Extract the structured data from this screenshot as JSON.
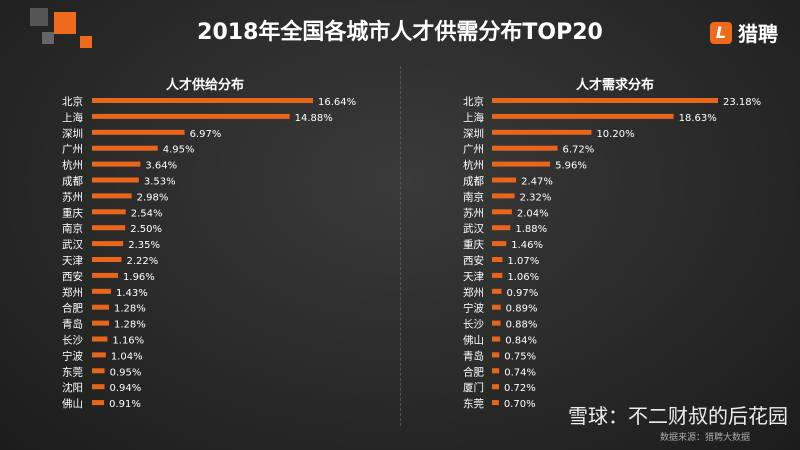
{
  "title": "2018年全国各城市人才供需分布TOP20",
  "brand": {
    "logo_letter": "L",
    "name": "猎聘"
  },
  "source": "数据来源：猎聘大数据",
  "watermark": "雪球：不二财叔的后花园",
  "colors": {
    "bar": "#e8651c",
    "background": "#2a2a2a"
  },
  "chart_data": [
    {
      "type": "bar",
      "orientation": "horizontal",
      "title": "人才供给分布",
      "categories": [
        "北京",
        "上海",
        "深圳",
        "广州",
        "杭州",
        "成都",
        "苏州",
        "重庆",
        "南京",
        "武汉",
        "天津",
        "西安",
        "郑州",
        "合肥",
        "青岛",
        "长沙",
        "宁波",
        "东莞",
        "沈阳",
        "佛山"
      ],
      "values": [
        16.64,
        14.88,
        6.97,
        4.95,
        3.64,
        3.53,
        2.98,
        2.54,
        2.5,
        2.35,
        2.22,
        1.96,
        1.43,
        1.28,
        1.28,
        1.16,
        1.04,
        0.95,
        0.94,
        0.91
      ],
      "labels": [
        "16.64%",
        "14.88%",
        "6.97%",
        "4.95%",
        "3.64%",
        "3.53%",
        "2.98%",
        "2.54%",
        "2.50%",
        "2.35%",
        "2.22%",
        "1.96%",
        "1.43%",
        "1.28%",
        "1.28%",
        "1.16%",
        "1.04%",
        "0.95%",
        "0.94%",
        "0.91%"
      ],
      "unit": "%"
    },
    {
      "type": "bar",
      "orientation": "horizontal",
      "title": "人才需求分布",
      "categories": [
        "北京",
        "上海",
        "深圳",
        "广州",
        "杭州",
        "成都",
        "南京",
        "苏州",
        "武汉",
        "重庆",
        "西安",
        "天津",
        "郑州",
        "宁波",
        "长沙",
        "佛山",
        "青岛",
        "合肥",
        "厦门",
        "东莞"
      ],
      "values": [
        23.18,
        18.63,
        10.2,
        6.72,
        5.96,
        2.47,
        2.32,
        2.04,
        1.88,
        1.46,
        1.07,
        1.06,
        0.97,
        0.89,
        0.88,
        0.84,
        0.75,
        0.74,
        0.72,
        0.7
      ],
      "labels": [
        "23.18%",
        "18.63%",
        "10.20%",
        "6.72%",
        "5.96%",
        "2.47%",
        "2.32%",
        "2.04%",
        "1.88%",
        "1.46%",
        "1.07%",
        "1.06%",
        "0.97%",
        "0.89%",
        "0.88%",
        "0.84%",
        "0.75%",
        "0.74%",
        "0.72%",
        "0.70%"
      ],
      "unit": "%"
    }
  ]
}
